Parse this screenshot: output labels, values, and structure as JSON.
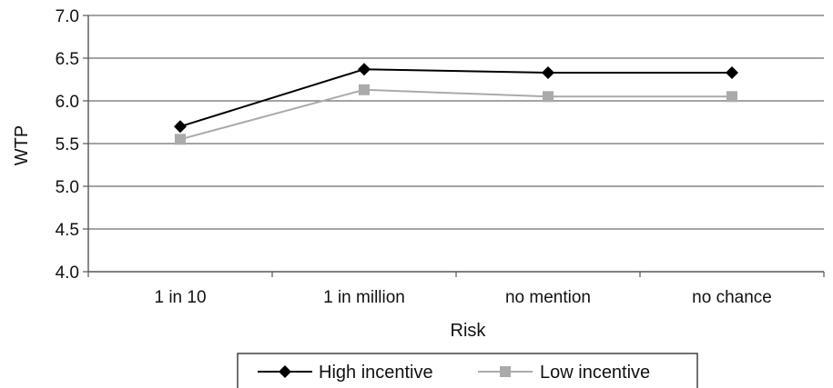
{
  "chart_data": {
    "type": "line",
    "title": "",
    "xlabel": "Risk",
    "ylabel": "WTP",
    "categories": [
      "1 in 10",
      "1 in million",
      "no mention",
      "no chance"
    ],
    "ylim": [
      4.0,
      7.0
    ],
    "yticks": [
      "4.0",
      "4.5",
      "5.0",
      "5.5",
      "6.0",
      "6.5",
      "7.0"
    ],
    "grid": "horizontal",
    "legend_position": "bottom",
    "series": [
      {
        "name": "High incentive",
        "values": [
          5.7,
          6.37,
          6.33,
          6.33
        ],
        "color": "#000000",
        "marker": "diamond"
      },
      {
        "name": "Low incentive",
        "values": [
          5.55,
          6.13,
          6.05,
          6.05
        ],
        "color": "#aaaaaa",
        "marker": "square"
      }
    ]
  }
}
